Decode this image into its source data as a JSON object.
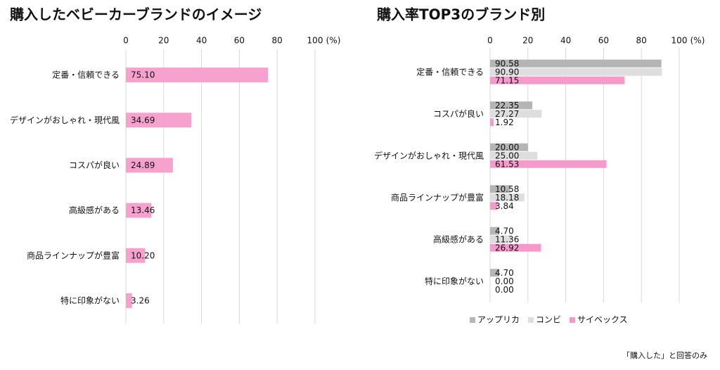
{
  "chart_data": [
    {
      "type": "bar",
      "orientation": "horizontal",
      "title": "購入したベビーカーブランドのイメージ",
      "xlabel": "(%)",
      "categories": [
        "定番・信頼できる",
        "デザインがおしゃれ・現代風",
        "コスパが良い",
        "高級感がある",
        "商品ラインナップが豊富",
        "特に印象がない"
      ],
      "values": [
        75.1,
        34.69,
        24.89,
        13.46,
        10.2,
        3.26
      ],
      "value_labels": [
        "75.10",
        "34.69",
        "24.89",
        "13.46",
        "10.20",
        "3.26"
      ],
      "color": "#f7a1cf",
      "xlim": [
        0,
        100
      ],
      "xticks": [
        0,
        20,
        40,
        60,
        80,
        100
      ],
      "grid": true
    },
    {
      "type": "bar",
      "orientation": "horizontal",
      "title": "購入率TOP3のブランド別",
      "xlabel": "(%)",
      "categories": [
        "定番・信頼できる",
        "コスパが良い",
        "デザインがおしゃれ・現代風",
        "商品ラインナップが豊富",
        "高級感がある",
        "特に印象がない"
      ],
      "series": [
        {
          "name": "アップリカ",
          "color": "#b5b5b5",
          "values": [
            90.58,
            22.35,
            20.0,
            10.58,
            4.7,
            4.7
          ],
          "value_labels": [
            "90.58",
            "22.35",
            "20.00",
            "10.58",
            "4.70",
            "4.70"
          ]
        },
        {
          "name": "コンビ",
          "color": "#dedede",
          "values": [
            90.9,
            27.27,
            25.0,
            18.18,
            11.36,
            0
          ],
          "value_labels": [
            "90.90",
            "27.27",
            "25.00",
            "18.18",
            "11.36",
            "0.00"
          ]
        },
        {
          "name": "サイベックス",
          "color": "#f59acb",
          "values": [
            71.15,
            1.92,
            61.53,
            3.84,
            26.92,
            0
          ],
          "value_labels": [
            "71.15",
            "1.92",
            "61.53",
            "3.84",
            "26.92",
            "0.00"
          ]
        }
      ],
      "xlim": [
        0,
        100
      ],
      "xticks": [
        0,
        20,
        40,
        60,
        80,
        100
      ],
      "grid": true,
      "legend": "bottom-left"
    }
  ],
  "footnote": "「購入した」と回答のみ"
}
